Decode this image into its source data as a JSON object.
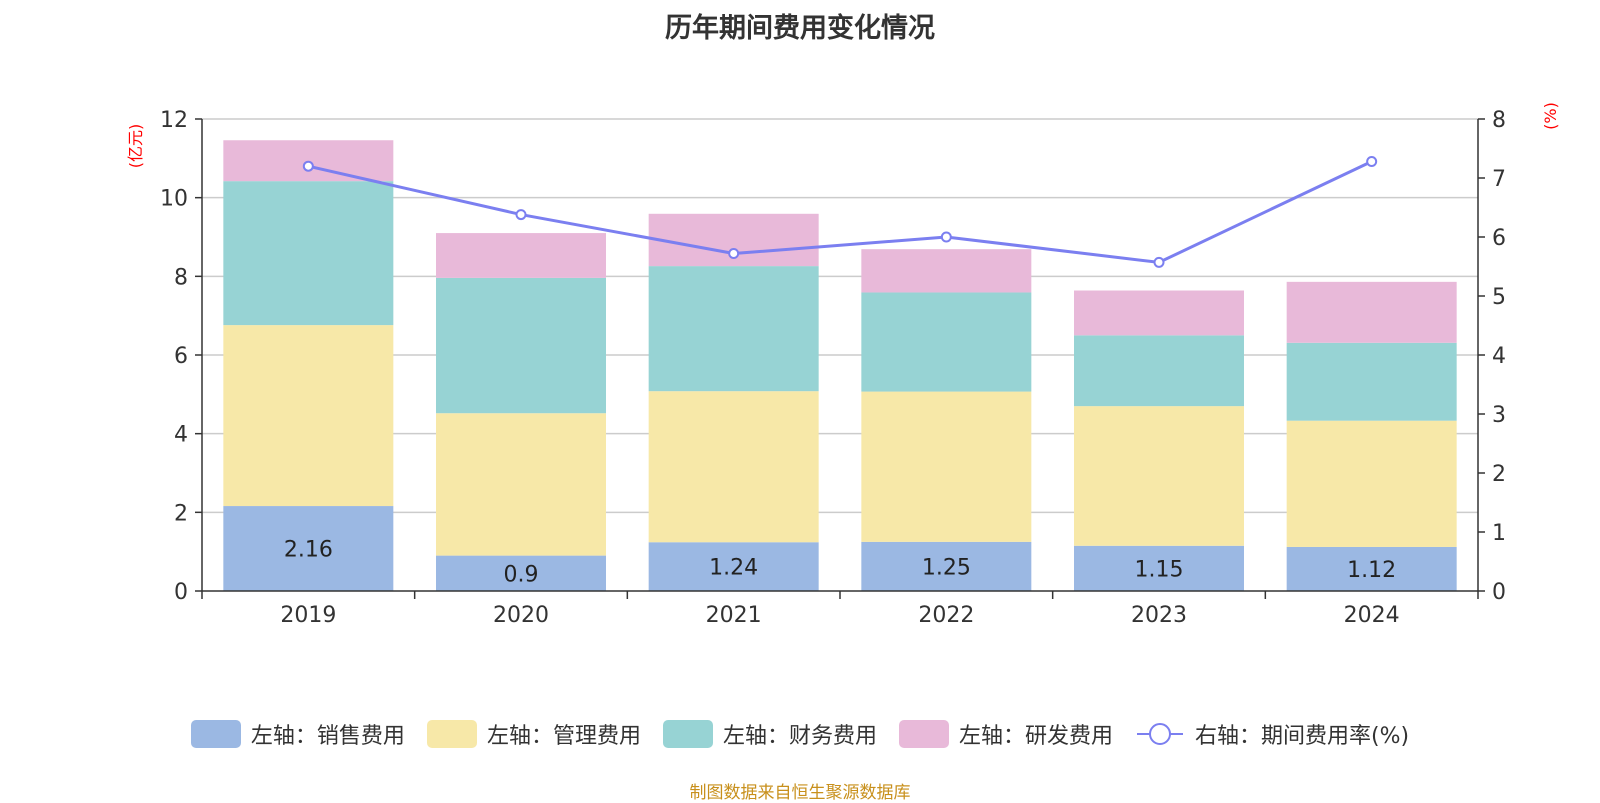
{
  "title": "历年期间费用变化情况",
  "source": "制图数据来自恒生聚源数据库",
  "chart_data": {
    "type": "bar",
    "stacked": true,
    "title": "历年期间费用变化情况",
    "categories": [
      "2019",
      "2020",
      "2021",
      "2022",
      "2023",
      "2024"
    ],
    "left_axis": {
      "unit": "(亿元)",
      "ylim": [
        0,
        12
      ],
      "ticks": [
        0,
        2,
        4,
        6,
        8,
        10,
        12
      ]
    },
    "right_axis": {
      "unit": "(%)",
      "ylim": [
        0,
        8
      ],
      "ticks": [
        0,
        1,
        2,
        3,
        4,
        5,
        6,
        7,
        8
      ]
    },
    "series": [
      {
        "name": "左轴：销售费用",
        "type": "bar",
        "axis": "left",
        "color": "#9bb8e3",
        "values": [
          2.16,
          0.9,
          1.24,
          1.25,
          1.15,
          1.12
        ],
        "labels": [
          "2.16",
          "0.9",
          "1.24",
          "1.25",
          "1.15",
          "1.12"
        ]
      },
      {
        "name": "左轴：管理费用",
        "type": "bar",
        "axis": "left",
        "color": "#f7e8a8",
        "values": [
          4.6,
          3.62,
          3.84,
          3.82,
          3.55,
          3.21
        ]
      },
      {
        "name": "左轴：财务费用",
        "type": "bar",
        "axis": "left",
        "color": "#97d3d4",
        "values": [
          3.66,
          3.44,
          3.18,
          2.52,
          1.8,
          1.98
        ]
      },
      {
        "name": "左轴：研发费用",
        "type": "bar",
        "axis": "left",
        "color": "#e8b9d9",
        "values": [
          1.04,
          1.14,
          1.33,
          1.1,
          1.14,
          1.55
        ]
      },
      {
        "name": "右轴：期间费用率(%)",
        "type": "line",
        "axis": "right",
        "color": "#7b7ff0",
        "values": [
          7.2,
          6.38,
          5.72,
          6.0,
          5.57,
          7.28
        ]
      }
    ],
    "grid": true,
    "legend_position": "bottom"
  }
}
